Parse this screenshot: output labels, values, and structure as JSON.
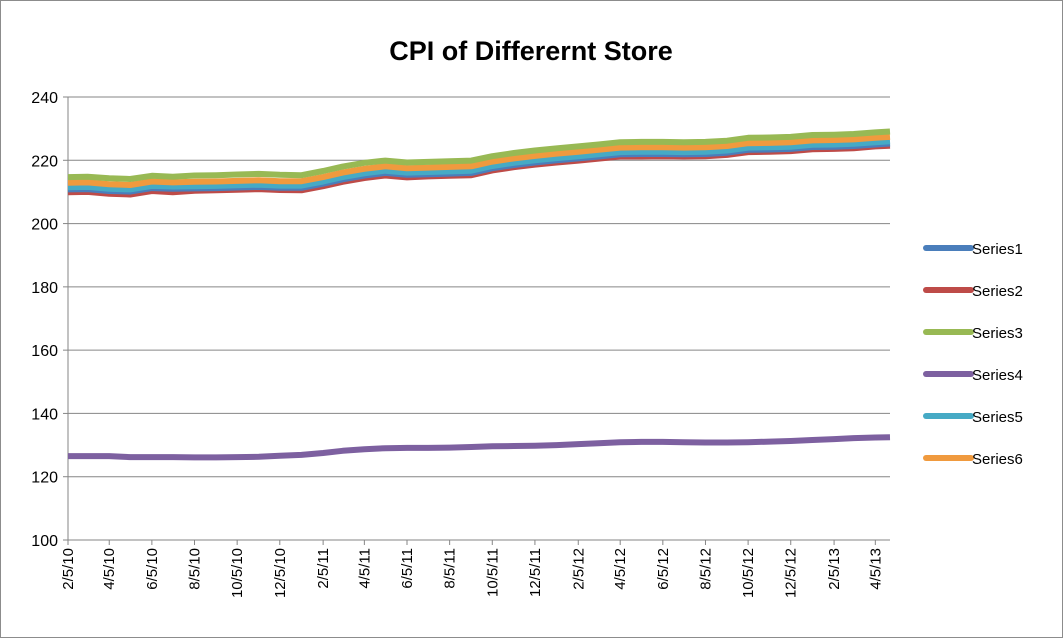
{
  "chart_data": {
    "type": "line",
    "title": "CPI of  Differernt Store",
    "xlabel": "",
    "ylabel": "",
    "ylim": [
      100,
      240
    ],
    "yticks": [
      100,
      120,
      140,
      160,
      180,
      200,
      220,
      240
    ],
    "grid": true,
    "legend_position": "right",
    "x_tick_labels": [
      "2/5/10",
      "4/5/10",
      "6/5/10",
      "8/5/10",
      "10/5/10",
      "12/5/10",
      "2/5/11",
      "4/5/11",
      "6/5/11",
      "8/5/11",
      "10/5/11",
      "12/5/11",
      "2/5/12",
      "4/5/12",
      "6/5/12",
      "8/5/12",
      "10/5/12",
      "12/5/12",
      "2/5/13",
      "4/5/13"
    ],
    "x_range": [
      "2/5/10",
      "4/26/13"
    ],
    "x": [
      "2/5/10",
      "3/5/10",
      "4/5/10",
      "5/5/10",
      "6/5/10",
      "7/5/10",
      "8/5/10",
      "9/5/10",
      "10/5/10",
      "11/5/10",
      "12/5/10",
      "1/5/11",
      "2/5/11",
      "3/5/11",
      "4/5/11",
      "5/5/11",
      "6/5/11",
      "7/5/11",
      "8/5/11",
      "9/5/11",
      "10/5/11",
      "11/5/11",
      "12/5/11",
      "1/5/12",
      "2/5/12",
      "3/5/12",
      "4/5/12",
      "5/5/12",
      "6/5/12",
      "7/5/12",
      "8/5/12",
      "9/5/12",
      "10/5/12",
      "11/5/12",
      "12/5/12",
      "1/5/13",
      "2/5/13",
      "3/5/13",
      "4/5/13",
      "4/26/13"
    ],
    "series": [
      {
        "name": "Series1",
        "color": "#4a7ebb",
        "values": [
          210.8,
          210.9,
          210.3,
          210.1,
          211.2,
          211.0,
          211.1,
          211.2,
          211.4,
          211.6,
          211.3,
          211.3,
          212.6,
          214.0,
          215.2,
          216.0,
          215.4,
          215.6,
          215.8,
          216.0,
          217.5,
          218.5,
          219.3,
          220.0,
          220.6,
          221.2,
          221.9,
          222.0,
          222.0,
          221.9,
          222.0,
          222.4,
          223.3,
          223.4,
          223.6,
          224.2,
          224.3,
          224.5,
          225.0,
          225.3
        ]
      },
      {
        "name": "Series2",
        "color": "#be4b48",
        "values": [
          209.9,
          210.0,
          209.4,
          209.2,
          210.3,
          209.9,
          210.4,
          210.5,
          210.7,
          210.9,
          210.6,
          210.5,
          211.8,
          213.2,
          214.4,
          215.2,
          214.6,
          214.9,
          215.1,
          215.3,
          216.8,
          217.8,
          218.6,
          219.3,
          219.9,
          220.5,
          221.2,
          221.2,
          221.3,
          221.2,
          221.3,
          221.7,
          222.6,
          222.7,
          222.9,
          223.5,
          223.6,
          223.8,
          224.4,
          224.6
        ]
      },
      {
        "name": "Series3",
        "color": "#98b954",
        "values": [
          214.7,
          214.8,
          214.3,
          214.1,
          215.1,
          214.8,
          215.2,
          215.3,
          215.5,
          215.7,
          215.4,
          215.3,
          216.6,
          218.0,
          219.2,
          219.9,
          219.3,
          219.5,
          219.7,
          219.9,
          221.3,
          222.3,
          223.1,
          223.8,
          224.4,
          225.0,
          225.7,
          225.8,
          225.8,
          225.7,
          225.8,
          226.2,
          227.1,
          227.2,
          227.4,
          228.0,
          228.1,
          228.3,
          228.8,
          229.1
        ]
      },
      {
        "name": "Series4",
        "color": "#7d60a0",
        "values": [
          126.5,
          126.5,
          126.5,
          126.2,
          126.2,
          126.2,
          126.1,
          126.1,
          126.2,
          126.3,
          126.6,
          126.9,
          127.5,
          128.2,
          128.7,
          129.0,
          129.1,
          129.1,
          129.2,
          129.4,
          129.6,
          129.7,
          129.8,
          130.0,
          130.3,
          130.6,
          130.9,
          131.0,
          131.0,
          130.9,
          130.8,
          130.8,
          130.9,
          131.1,
          131.3,
          131.6,
          131.9,
          132.2,
          132.4,
          132.5
        ]
      },
      {
        "name": "Series5",
        "color": "#46aac5",
        "values": [
          211.5,
          211.6,
          211.0,
          210.8,
          211.9,
          211.7,
          211.8,
          211.9,
          212.1,
          212.3,
          212.0,
          212.0,
          213.3,
          214.7,
          215.9,
          216.7,
          216.1,
          216.3,
          216.5,
          216.7,
          218.2,
          219.2,
          220.0,
          220.7,
          221.3,
          221.9,
          222.6,
          222.7,
          222.7,
          222.6,
          222.7,
          223.1,
          224.0,
          224.1,
          224.3,
          224.9,
          225.0,
          225.2,
          225.7,
          226.0
        ]
      },
      {
        "name": "Series6",
        "color": "#f09a3e",
        "values": [
          212.9,
          213.0,
          212.4,
          212.2,
          213.3,
          213.0,
          213.2,
          213.3,
          213.5,
          213.7,
          213.4,
          213.4,
          214.7,
          216.1,
          217.3,
          218.1,
          217.5,
          217.7,
          217.9,
          218.1,
          219.6,
          220.6,
          221.4,
          222.1,
          222.7,
          223.3,
          224.0,
          224.1,
          224.1,
          224.0,
          224.1,
          224.5,
          225.4,
          225.5,
          225.7,
          226.3,
          226.4,
          226.6,
          227.1,
          227.4
        ]
      }
    ]
  }
}
